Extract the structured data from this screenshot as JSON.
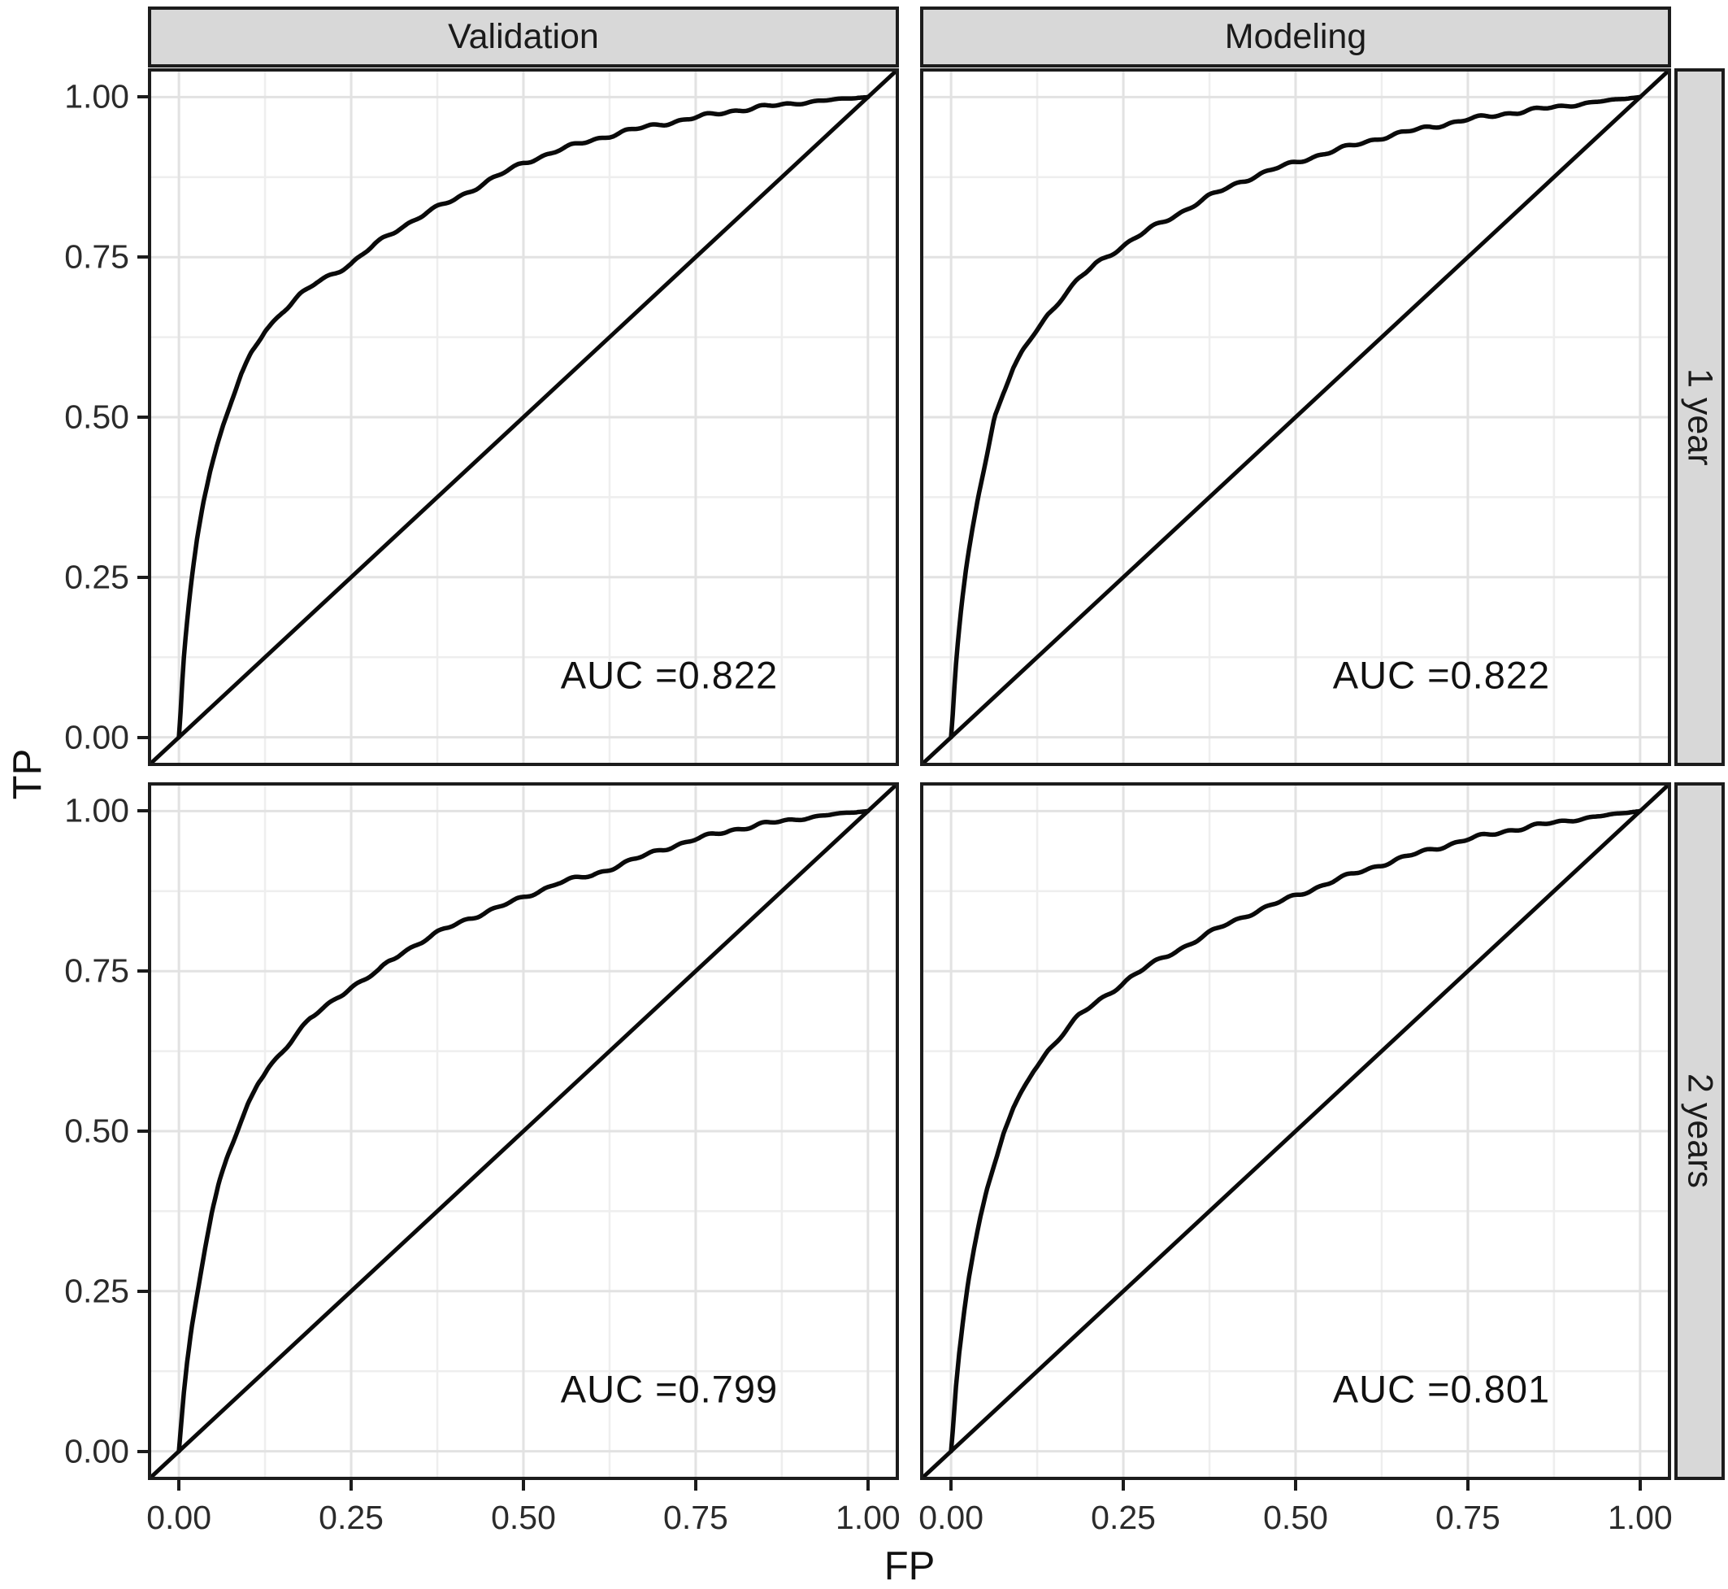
{
  "chart_data": {
    "type": "line",
    "description": "Faceted empirical ROC curves with diagonal chance reference line in each panel",
    "facet_columns": [
      "Validation",
      "Modeling"
    ],
    "facet_rows": [
      "1 year",
      "2 years"
    ],
    "xlabel": "FP",
    "ylabel": "TP",
    "x_ticks": [
      "0.00",
      "0.25",
      "0.50",
      "0.75",
      "1.00"
    ],
    "x_tick_values": [
      0,
      0.25,
      0.5,
      0.75,
      1
    ],
    "y_ticks": [
      "1.00",
      "0.75",
      "0.50",
      "0.25",
      "0.00"
    ],
    "y_tick_values": [
      1,
      0.75,
      0.5,
      0.25,
      0
    ],
    "axis_range": [
      -0.045,
      1.045
    ],
    "grid": {
      "major": [
        0,
        0.25,
        0.5,
        0.75,
        1
      ],
      "minor": [
        0.125,
        0.375,
        0.625,
        0.875
      ]
    },
    "reference_line": {
      "type": "diagonal",
      "slope": 1,
      "intercept": 0
    },
    "panels": [
      {
        "column": "Validation",
        "row": "1 year",
        "auc": 0.822,
        "auc_label": "AUC =0.822",
        "roc": [
          [
            0,
            0
          ],
          [
            0.003,
            0.05
          ],
          [
            0.006,
            0.11
          ],
          [
            0.01,
            0.16
          ],
          [
            0.015,
            0.215
          ],
          [
            0.02,
            0.26
          ],
          [
            0.027,
            0.315
          ],
          [
            0.035,
            0.365
          ],
          [
            0.045,
            0.415
          ],
          [
            0.055,
            0.455
          ],
          [
            0.065,
            0.49
          ],
          [
            0.078,
            0.53
          ],
          [
            0.09,
            0.565
          ],
          [
            0.105,
            0.6
          ],
          [
            0.125,
            0.635
          ],
          [
            0.15,
            0.665
          ],
          [
            0.175,
            0.69
          ],
          [
            0.2,
            0.71
          ],
          [
            0.225,
            0.725
          ],
          [
            0.25,
            0.74
          ],
          [
            0.285,
            0.77
          ],
          [
            0.32,
            0.795
          ],
          [
            0.36,
            0.82
          ],
          [
            0.4,
            0.84
          ],
          [
            0.45,
            0.87
          ],
          [
            0.5,
            0.897
          ],
          [
            0.55,
            0.917
          ],
          [
            0.6,
            0.933
          ],
          [
            0.65,
            0.947
          ],
          [
            0.7,
            0.958
          ],
          [
            0.75,
            0.968
          ],
          [
            0.8,
            0.978
          ],
          [
            0.85,
            0.985
          ],
          [
            0.9,
            0.991
          ],
          [
            0.95,
            0.996
          ],
          [
            1,
            1
          ]
        ]
      },
      {
        "column": "Modeling",
        "row": "1 year",
        "auc": 0.822,
        "auc_label": "AUC =0.822",
        "roc": [
          [
            0,
            0
          ],
          [
            0.003,
            0.045
          ],
          [
            0.006,
            0.1
          ],
          [
            0.01,
            0.15
          ],
          [
            0.015,
            0.205
          ],
          [
            0.022,
            0.265
          ],
          [
            0.03,
            0.32
          ],
          [
            0.04,
            0.38
          ],
          [
            0.05,
            0.43
          ],
          [
            0.063,
            0.5
          ],
          [
            0.075,
            0.535
          ],
          [
            0.09,
            0.575
          ],
          [
            0.105,
            0.605
          ],
          [
            0.12,
            0.63
          ],
          [
            0.14,
            0.66
          ],
          [
            0.16,
            0.685
          ],
          [
            0.185,
            0.715
          ],
          [
            0.21,
            0.74
          ],
          [
            0.25,
            0.768
          ],
          [
            0.29,
            0.795
          ],
          [
            0.33,
            0.818
          ],
          [
            0.375,
            0.845
          ],
          [
            0.42,
            0.868
          ],
          [
            0.47,
            0.888
          ],
          [
            0.52,
            0.905
          ],
          [
            0.575,
            0.922
          ],
          [
            0.625,
            0.937
          ],
          [
            0.68,
            0.95
          ],
          [
            0.75,
            0.965
          ],
          [
            0.81,
            0.975
          ],
          [
            0.875,
            0.984
          ],
          [
            0.94,
            0.993
          ],
          [
            1,
            1
          ]
        ]
      },
      {
        "column": "Validation",
        "row": "2 years",
        "auc": 0.799,
        "auc_label": "AUC =0.799",
        "roc": [
          [
            0,
            0
          ],
          [
            0.003,
            0.04
          ],
          [
            0.007,
            0.09
          ],
          [
            0.012,
            0.14
          ],
          [
            0.018,
            0.19
          ],
          [
            0.025,
            0.235
          ],
          [
            0.032,
            0.28
          ],
          [
            0.04,
            0.33
          ],
          [
            0.048,
            0.375
          ],
          [
            0.058,
            0.42
          ],
          [
            0.07,
            0.46
          ],
          [
            0.085,
            0.5
          ],
          [
            0.1,
            0.54
          ],
          [
            0.115,
            0.575
          ],
          [
            0.13,
            0.6
          ],
          [
            0.15,
            0.625
          ],
          [
            0.17,
            0.65
          ],
          [
            0.19,
            0.675
          ],
          [
            0.21,
            0.692
          ],
          [
            0.23,
            0.71
          ],
          [
            0.25,
            0.725
          ],
          [
            0.27,
            0.737
          ],
          [
            0.29,
            0.75
          ],
          [
            0.305,
            0.765
          ],
          [
            0.325,
            0.78
          ],
          [
            0.35,
            0.795
          ],
          [
            0.385,
            0.815
          ],
          [
            0.42,
            0.832
          ],
          [
            0.46,
            0.848
          ],
          [
            0.5,
            0.865
          ],
          [
            0.55,
            0.888
          ],
          [
            0.6,
            0.9
          ],
          [
            0.65,
            0.92
          ],
          [
            0.7,
            0.94
          ],
          [
            0.75,
            0.956
          ],
          [
            0.8,
            0.97
          ],
          [
            0.85,
            0.98
          ],
          [
            0.9,
            0.988
          ],
          [
            0.95,
            0.995
          ],
          [
            1,
            1
          ]
        ]
      },
      {
        "column": "Modeling",
        "row": "2 years",
        "auc": 0.801,
        "auc_label": "AUC =0.801",
        "roc": [
          [
            0,
            0
          ],
          [
            0.003,
            0.04
          ],
          [
            0.007,
            0.1
          ],
          [
            0.012,
            0.155
          ],
          [
            0.018,
            0.21
          ],
          [
            0.025,
            0.265
          ],
          [
            0.033,
            0.315
          ],
          [
            0.042,
            0.365
          ],
          [
            0.052,
            0.41
          ],
          [
            0.065,
            0.455
          ],
          [
            0.077,
            0.5
          ],
          [
            0.09,
            0.535
          ],
          [
            0.105,
            0.565
          ],
          [
            0.12,
            0.595
          ],
          [
            0.14,
            0.625
          ],
          [
            0.16,
            0.65
          ],
          [
            0.185,
            0.68
          ],
          [
            0.21,
            0.7
          ],
          [
            0.235,
            0.72
          ],
          [
            0.26,
            0.74
          ],
          [
            0.285,
            0.757
          ],
          [
            0.31,
            0.772
          ],
          [
            0.35,
            0.795
          ],
          [
            0.39,
            0.818
          ],
          [
            0.43,
            0.838
          ],
          [
            0.47,
            0.855
          ],
          [
            0.51,
            0.872
          ],
          [
            0.56,
            0.893
          ],
          [
            0.62,
            0.915
          ],
          [
            0.68,
            0.935
          ],
          [
            0.75,
            0.956
          ],
          [
            0.81,
            0.97
          ],
          [
            0.875,
            0.982
          ],
          [
            0.94,
            0.992
          ],
          [
            1,
            1
          ]
        ]
      }
    ]
  },
  "colors": {
    "background": "#ffffff",
    "strip_fill": "#d8d8d8",
    "panel_border": "#1c1c1c",
    "grid_major": "#e2e2e2",
    "grid_minor": "#eeeeee",
    "curve": "#0a0a0a",
    "reference": "#0a0a0a",
    "tick_text": "#2b2b2b",
    "text": "#111111"
  }
}
